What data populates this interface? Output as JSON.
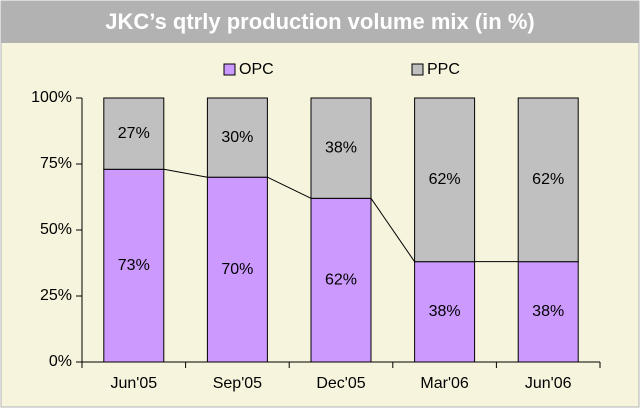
{
  "chart_data": {
    "type": "stacked_bar",
    "title": "JKC’s qtrly production volume mix (in %)",
    "categories": [
      "Jun'05",
      "Sep'05",
      "Dec'05",
      "Mar'06",
      "Jun'06"
    ],
    "series": [
      {
        "name": "OPC",
        "color": "#cc99ff",
        "values": [
          73,
          70,
          62,
          38,
          38
        ],
        "value_labels": [
          "73%",
          "70%",
          "62%",
          "38%",
          "38%"
        ]
      },
      {
        "name": "PPC",
        "color": "#c0c0c0",
        "values": [
          27,
          30,
          38,
          62,
          62
        ],
        "value_labels": [
          "27%",
          "30%",
          "38%",
          "62%",
          "62%"
        ]
      }
    ],
    "ylim": [
      0,
      100
    ],
    "yticks": [
      {
        "value": 0,
        "label": "0%"
      },
      {
        "value": 25,
        "label": "25%"
      },
      {
        "value": 50,
        "label": "50%"
      },
      {
        "value": 75,
        "label": "75%"
      },
      {
        "value": 100,
        "label": "100%"
      }
    ],
    "legend": "top",
    "series_lines": true
  }
}
